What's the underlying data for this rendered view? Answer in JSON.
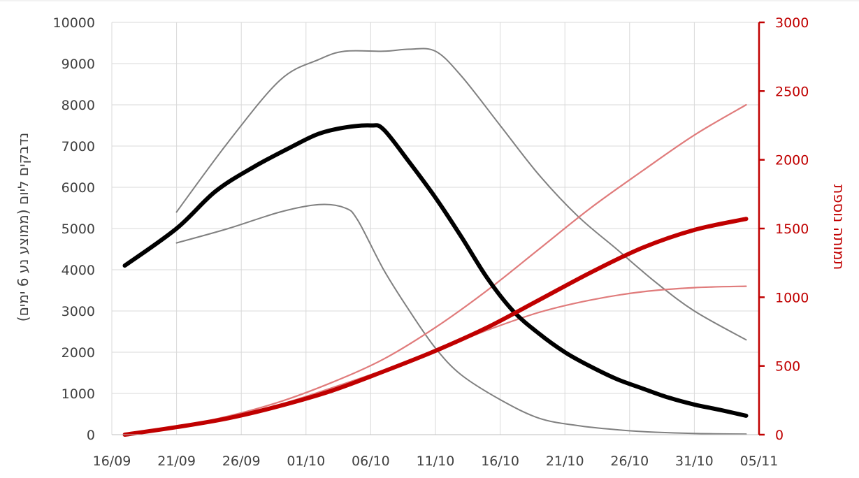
{
  "chart_data": {
    "type": "line",
    "title": "",
    "xlabel": "",
    "ylabel_left": "נדבקים ליום (ממוצע נע 6 ימים)",
    "ylabel_right": "תמותה נוספת",
    "x_ticks": [
      "16/09",
      "21/09",
      "26/09",
      "01/10",
      "06/10",
      "11/10",
      "16/10",
      "21/10",
      "26/10",
      "31/10",
      "05/11"
    ],
    "x_range": [
      "2020-09-16",
      "2020-11-05"
    ],
    "ylim_left": [
      0,
      10000
    ],
    "ylim_right": [
      0,
      3000
    ],
    "yticks_left": [
      "0",
      "1000",
      "2000",
      "3000",
      "4000",
      "5000",
      "6000",
      "7000",
      "8000",
      "9000",
      "10000"
    ],
    "yticks_right": [
      "0",
      "500",
      "1000",
      "1500",
      "2000",
      "2500",
      "3000"
    ],
    "grid": true,
    "legend": "none",
    "colors": {
      "cases": "#000000",
      "cases_band": "#808080",
      "deaths": "#c00000",
      "deaths_band": "#e07b7b",
      "left_axis_text": "#404040",
      "right_axis": "#c00000",
      "grid": "#d9d9d9"
    },
    "series": [
      {
        "axis": "left",
        "role": "cases",
        "points": [
          [
            "2020-09-17",
            4100
          ],
          [
            "2020-09-21",
            5000
          ],
          [
            "2020-09-24",
            5900
          ],
          [
            "2020-09-27",
            6500
          ],
          [
            "2020-09-30",
            7000
          ],
          [
            "2020-10-02",
            7300
          ],
          [
            "2020-10-04",
            7450
          ],
          [
            "2020-10-06",
            7500
          ],
          [
            "2020-10-07",
            7400
          ],
          [
            "2020-10-09",
            6600
          ],
          [
            "2020-10-11",
            5750
          ],
          [
            "2020-10-13",
            4800
          ],
          [
            "2020-10-15",
            3800
          ],
          [
            "2020-10-17",
            3000
          ],
          [
            "2020-10-19",
            2450
          ],
          [
            "2020-10-21",
            2000
          ],
          [
            "2020-10-23",
            1650
          ],
          [
            "2020-10-25",
            1350
          ],
          [
            "2020-10-27",
            1120
          ],
          [
            "2020-10-29",
            900
          ],
          [
            "2020-10-31",
            730
          ],
          [
            "2020-11-02",
            600
          ],
          [
            "2020-11-04",
            460
          ]
        ]
      },
      {
        "axis": "left",
        "role": "cases_band",
        "points": [
          [
            "2020-09-21",
            5400
          ],
          [
            "2020-09-25",
            7100
          ],
          [
            "2020-09-29",
            8600
          ],
          [
            "2020-10-02",
            9100
          ],
          [
            "2020-10-04",
            9300
          ],
          [
            "2020-10-07",
            9300
          ],
          [
            "2020-10-09",
            9350
          ],
          [
            "2020-10-11",
            9300
          ],
          [
            "2020-10-13",
            8700
          ],
          [
            "2020-10-16",
            7500
          ],
          [
            "2020-10-19",
            6300
          ],
          [
            "2020-10-22",
            5300
          ],
          [
            "2020-10-25",
            4500
          ],
          [
            "2020-10-28",
            3700
          ],
          [
            "2020-10-31",
            3000
          ],
          [
            "2020-11-04",
            2300
          ]
        ]
      },
      {
        "axis": "left",
        "role": "cases_band",
        "points": [
          [
            "2020-09-21",
            4650
          ],
          [
            "2020-09-25",
            5000
          ],
          [
            "2020-09-29",
            5400
          ],
          [
            "2020-10-02",
            5580
          ],
          [
            "2020-10-04",
            5500
          ],
          [
            "2020-10-05",
            5200
          ],
          [
            "2020-10-07",
            4000
          ],
          [
            "2020-10-09",
            3000
          ],
          [
            "2020-10-11",
            2100
          ],
          [
            "2020-10-13",
            1450
          ],
          [
            "2020-10-16",
            850
          ],
          [
            "2020-10-19",
            400
          ],
          [
            "2020-10-22",
            220
          ],
          [
            "2020-10-25",
            120
          ],
          [
            "2020-10-28",
            60
          ],
          [
            "2020-10-31",
            30
          ],
          [
            "2020-11-04",
            15
          ]
        ]
      },
      {
        "axis": "right",
        "role": "deaths_band",
        "points": [
          [
            "2020-09-17",
            0
          ],
          [
            "2020-09-21",
            55
          ],
          [
            "2020-09-25",
            135
          ],
          [
            "2020-09-29",
            240
          ],
          [
            "2020-10-03",
            380
          ],
          [
            "2020-10-07",
            550
          ],
          [
            "2020-10-11",
            780
          ],
          [
            "2020-10-15",
            1050
          ],
          [
            "2020-10-19",
            1350
          ],
          [
            "2020-10-23",
            1650
          ],
          [
            "2020-10-27",
            1920
          ],
          [
            "2020-10-31",
            2180
          ],
          [
            "2020-11-04",
            2400
          ]
        ]
      },
      {
        "axis": "right",
        "role": "deaths_band",
        "points": [
          [
            "2020-09-17",
            0
          ],
          [
            "2020-09-21",
            55
          ],
          [
            "2020-09-25",
            130
          ],
          [
            "2020-09-29",
            220
          ],
          [
            "2020-10-03",
            340
          ],
          [
            "2020-10-07",
            470
          ],
          [
            "2020-10-11",
            610
          ],
          [
            "2020-10-15",
            760
          ],
          [
            "2020-10-19",
            890
          ],
          [
            "2020-10-23",
            980
          ],
          [
            "2020-10-27",
            1040
          ],
          [
            "2020-10-31",
            1070
          ],
          [
            "2020-11-04",
            1080
          ]
        ]
      },
      {
        "axis": "right",
        "role": "deaths",
        "points": [
          [
            "2020-09-17",
            0
          ],
          [
            "2020-09-21",
            55
          ],
          [
            "2020-09-25",
            120
          ],
          [
            "2020-09-29",
            210
          ],
          [
            "2020-10-03",
            320
          ],
          [
            "2020-10-07",
            460
          ],
          [
            "2020-10-11",
            610
          ],
          [
            "2020-10-15",
            780
          ],
          [
            "2020-10-19",
            980
          ],
          [
            "2020-10-23",
            1180
          ],
          [
            "2020-10-27",
            1360
          ],
          [
            "2020-10-31",
            1490
          ],
          [
            "2020-11-04",
            1570
          ]
        ]
      }
    ]
  }
}
